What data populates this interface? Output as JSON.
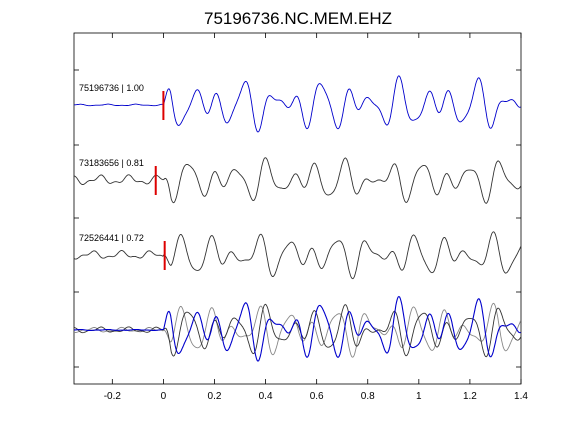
{
  "chart_data": {
    "type": "line",
    "title": "75196736.NC.MEM.EHZ",
    "xlabel": "",
    "ylabel": "",
    "xlim": [
      -0.35,
      1.4
    ],
    "x_ticks": [
      -0.2,
      0,
      0.2,
      0.4,
      0.6,
      0.8,
      1,
      1.2,
      1.4
    ],
    "x_tick_labels": [
      "-0.2",
      "0",
      "0.2",
      "0.4",
      "0.6",
      "0.8",
      "1",
      "1.2",
      "1.4"
    ],
    "grid": false,
    "legend": "none",
    "colors": {
      "primary": "#0000cc",
      "secondary": "#333333",
      "overlay_gray": "#888888",
      "pick": "#dd0000"
    },
    "traces": [
      {
        "label": "75196736 | 1.00",
        "pick_time": 0.0,
        "color": "#0000cc"
      },
      {
        "label": "73183656 | 0.81",
        "pick_time": -0.03,
        "color": "#333333"
      },
      {
        "label": "72526441 | 0.72",
        "pick_time": 0.005,
        "color": "#333333"
      }
    ],
    "stack_panel": {
      "traces_overlaid": 3
    }
  }
}
